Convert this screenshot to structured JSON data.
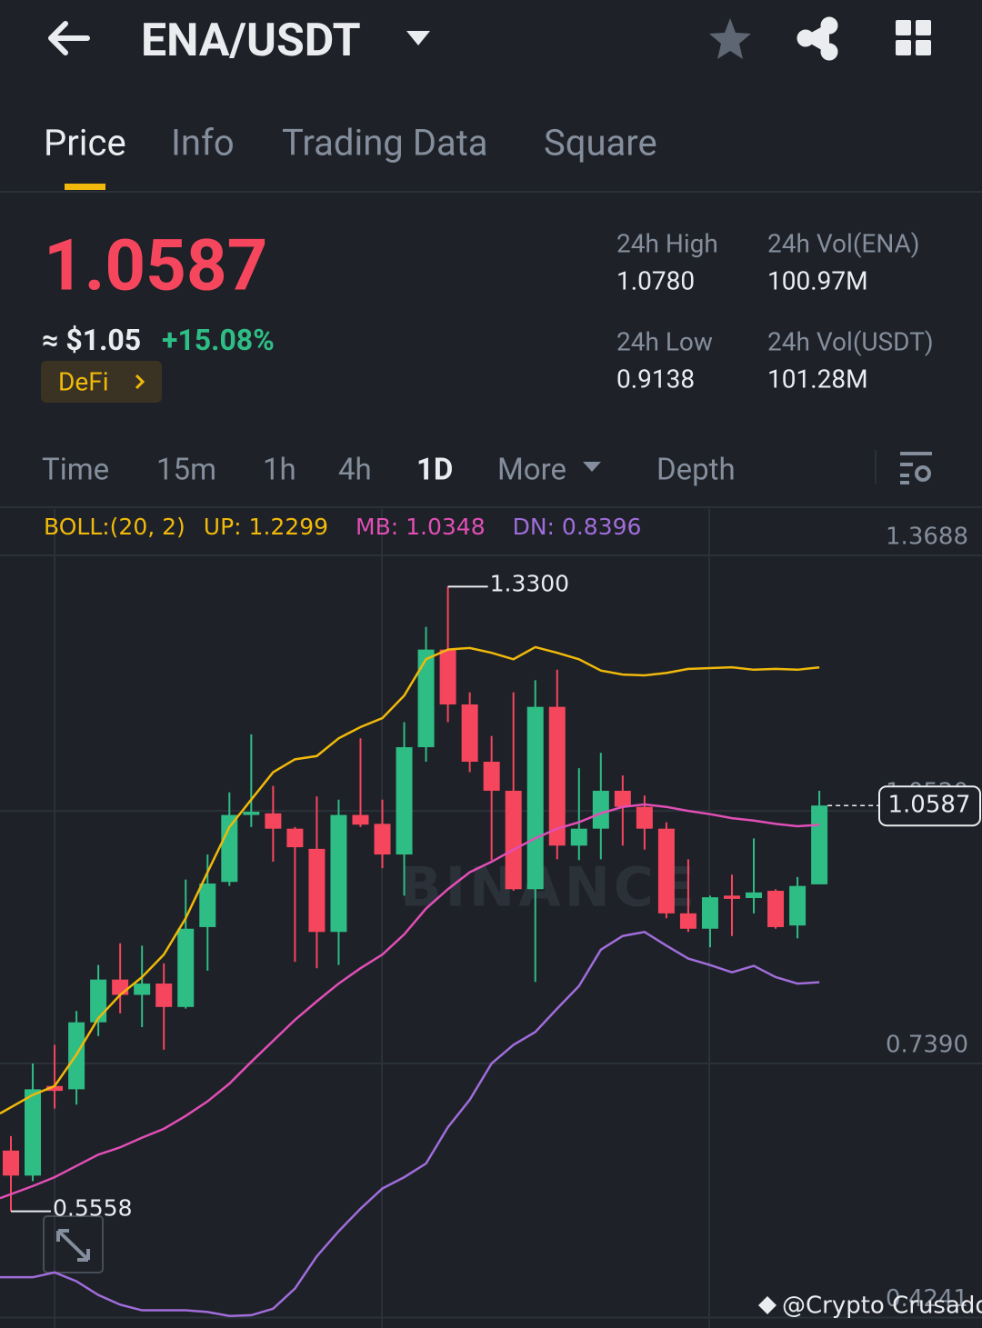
{
  "header": {
    "title": "ENA/USDT"
  },
  "tabs": [
    "Price",
    "Info",
    "Trading Data",
    "Square"
  ],
  "ticker": {
    "last": "1.0587",
    "fiat": "≈ $1.05",
    "change": "+15.08%",
    "tag": "DeFi",
    "stats": [
      {
        "label": "24h High",
        "value": "1.0780"
      },
      {
        "label": "24h Vol(ENA)",
        "value": "100.97M"
      },
      {
        "label": "24h Low",
        "value": "0.9138"
      },
      {
        "label": "24h Vol(USDT)",
        "value": "101.28M"
      }
    ]
  },
  "intervals": [
    "Time",
    "15m",
    "1h",
    "4h",
    "1D",
    "More",
    "Depth"
  ],
  "chart_data": {
    "type": "candlestick",
    "categories": [
      null,
      null,
      null,
      null,
      null,
      null,
      null,
      null,
      null,
      null,
      null,
      null,
      null,
      null,
      null,
      null,
      null,
      null,
      null,
      null,
      null,
      null,
      null,
      null,
      null,
      null,
      null,
      null,
      null,
      null,
      null,
      null,
      null,
      null,
      null,
      null,
      null,
      null
    ],
    "ohlc": {
      "open": [
        0.631,
        0.6,
        0.711,
        0.707,
        0.79,
        0.843,
        0.824,
        0.838,
        0.809,
        0.908,
        0.964,
        1.047,
        1.049,
        1.03,
        1.005,
        0.902,
        1.047,
        1.036,
        0.998,
        1.131,
        1.252,
        1.184,
        1.113,
        1.077,
        0.955,
        1.181,
        1.009,
        1.03,
        1.077,
        1.057,
        1.03,
        0.925,
        0.906,
        0.947,
        0.944,
        0.953,
        0.91,
        0.961
      ],
      "high": [
        0.649,
        0.739,
        0.762,
        0.804,
        0.861,
        0.888,
        0.885,
        0.863,
        0.967,
        0.998,
        1.075,
        1.147,
        1.083,
        1.032,
        1.07,
        1.066,
        1.142,
        1.066,
        1.162,
        1.28,
        1.33,
        1.199,
        1.145,
        1.199,
        1.214,
        1.227,
        1.105,
        1.124,
        1.096,
        1.071,
        1.038,
        0.992,
        0.947,
        0.973,
        1.018,
        0.955,
        0.97,
        1.077
      ],
      "low": [
        0.5558,
        0.593,
        0.683,
        0.688,
        0.773,
        0.801,
        0.784,
        0.756,
        0.807,
        0.854,
        0.959,
        1.032,
        0.989,
        0.865,
        0.857,
        0.861,
        1.032,
        0.981,
        0.947,
        1.113,
        1.162,
        1.1,
        0.991,
        0.953,
        0.84,
        0.992,
        0.991,
        0.992,
        1.009,
        1.004,
        0.919,
        0.902,
        0.883,
        0.897,
        0.925,
        0.906,
        0.894,
        0.961
      ],
      "close": [
        0.6,
        0.707,
        0.705,
        0.79,
        0.843,
        0.824,
        0.838,
        0.809,
        0.906,
        0.962,
        1.047,
        1.051,
        1.03,
        1.007,
        0.902,
        1.047,
        1.035,
        0.998,
        1.131,
        1.252,
        1.184,
        1.113,
        1.077,
        0.955,
        1.181,
        1.009,
        1.03,
        1.077,
        1.057,
        1.03,
        0.925,
        0.906,
        0.945,
        0.943,
        0.951,
        0.908,
        0.959,
        1.0587
      ]
    },
    "up_color": "#2ebd85",
    "down_color": "#f6465d",
    "indicator": "BOLL:(20, 2)",
    "bands": [
      {
        "name": "UP: 1.2299",
        "color": "#f0b90b",
        "values": [
          0.677,
          0.7,
          0.711,
          0.75,
          0.795,
          0.824,
          0.846,
          0.874,
          0.919,
          0.976,
          1.032,
          1.066,
          1.1,
          1.116,
          1.12,
          1.142,
          1.156,
          1.167,
          1.195,
          1.24,
          1.252,
          1.254,
          1.248,
          1.24,
          1.255,
          1.248,
          1.24,
          1.226,
          1.221,
          1.22,
          1.223,
          1.228,
          1.229,
          1.23,
          1.227,
          1.228,
          1.227,
          1.2299
        ]
      },
      {
        "name": "MB: 1.0348",
        "color": "#e14fb6",
        "values": [
          0.572,
          0.587,
          0.598,
          0.612,
          0.626,
          0.635,
          0.647,
          0.658,
          0.674,
          0.692,
          0.714,
          0.741,
          0.767,
          0.793,
          0.816,
          0.838,
          0.857,
          0.874,
          0.899,
          0.931,
          0.955,
          0.976,
          0.989,
          1.004,
          1.018,
          1.03,
          1.038,
          1.049,
          1.057,
          1.06,
          1.057,
          1.052,
          1.048,
          1.043,
          1.04,
          1.036,
          1.033,
          1.0348
        ]
      },
      {
        "name": "DN: 0.8396",
        "color": "#a06ddb",
        "values": [
          0.474,
          0.474,
          0.48,
          0.469,
          0.452,
          0.44,
          0.433,
          0.433,
          0.433,
          0.431,
          0.426,
          0.427,
          0.435,
          0.46,
          0.5,
          0.531,
          0.559,
          0.584,
          0.598,
          0.615,
          0.66,
          0.694,
          0.739,
          0.762,
          0.778,
          0.807,
          0.835,
          0.88,
          0.897,
          0.902,
          0.885,
          0.869,
          0.861,
          0.852,
          0.86,
          0.846,
          0.838,
          0.8396
        ]
      }
    ],
    "ylim": [
      0.4111,
      1.4262
    ],
    "yticks": [
      1.3688,
      {
        "value": 1.052,
        "label": "1.0520"
      },
      {
        "value": 0.739,
        "label": "0.7390"
      },
      0.4241
    ],
    "grid": true,
    "high_label": "1.3300",
    "watermark": "BINANCE"
  },
  "credit": "@Crypto Crusador"
}
